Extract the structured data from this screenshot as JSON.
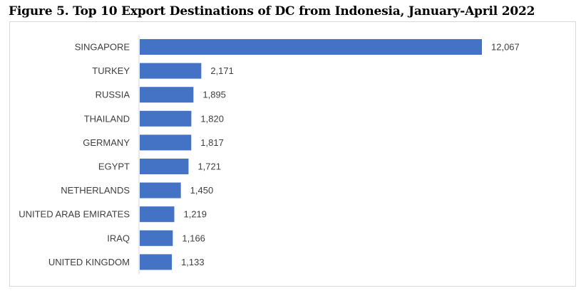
{
  "figure": {
    "title": "Figure 5. Top 10 Export Destinations of DC from Indonesia, January-April 2022"
  },
  "chart_data": {
    "type": "bar",
    "orientation": "horizontal",
    "title": "",
    "xlabel": "",
    "ylabel": "",
    "categories": [
      "SINGAPORE",
      "TURKEY",
      "RUSSIA",
      "THAILAND",
      "GERMANY",
      "EGYPT",
      "NETHERLANDS",
      "UNITED ARAB EMIRATES",
      "IRAQ",
      "UNITED KINGDOM"
    ],
    "values": [
      12067,
      2171,
      1895,
      1820,
      1817,
      1721,
      1450,
      1219,
      1166,
      1133
    ],
    "value_labels": [
      "12,067",
      "2,171",
      "1,895",
      "1,820",
      "1,817",
      "1,721",
      "1,450",
      "1,219",
      "1,166",
      "1,133"
    ],
    "xlim": [
      0,
      12067
    ],
    "grid": false,
    "legend": "none",
    "colors": {
      "bar": "#4472c4",
      "axis": "#d9d9d9",
      "text": "#404040"
    }
  }
}
